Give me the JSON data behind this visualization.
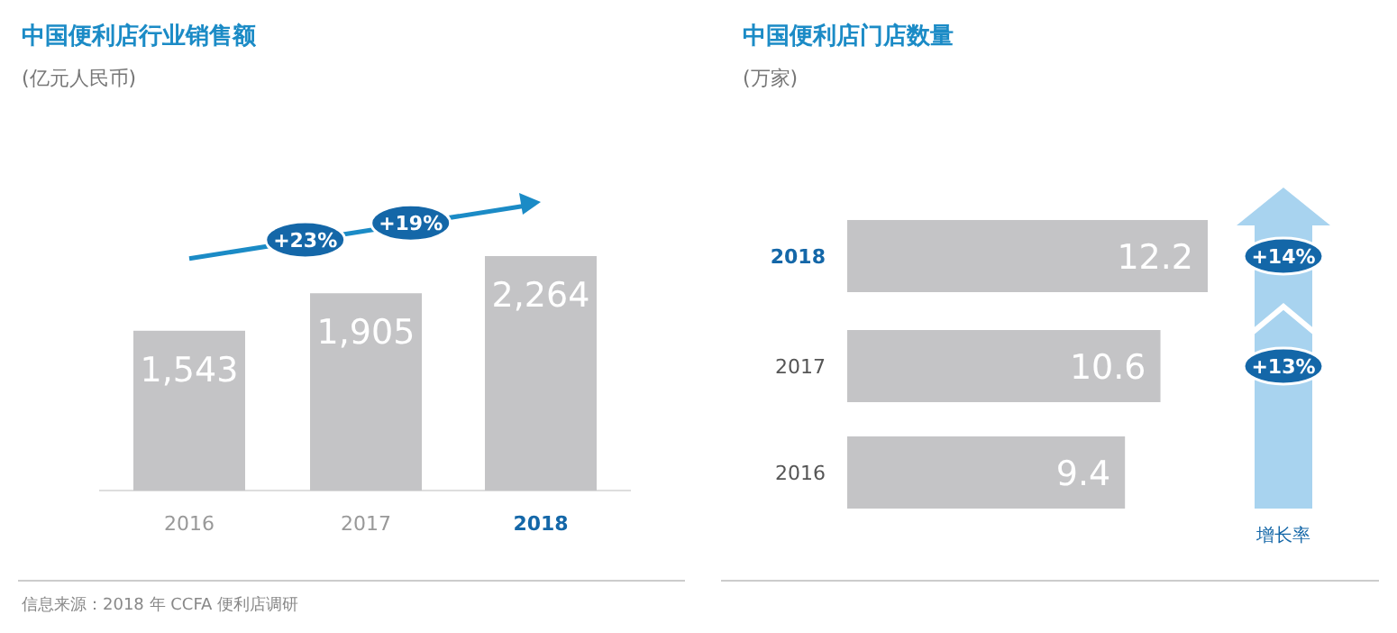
{
  "chart_data": [
    {
      "type": "bar",
      "title": "中国便利店行业销售额",
      "subtitle": "(亿元人民币)",
      "categories": [
        "2016",
        "2017",
        "2018"
      ],
      "values": [
        1543,
        1905,
        2264
      ],
      "value_labels": [
        "1,543",
        "1,905",
        "2,264"
      ],
      "color": "#c4c4c6",
      "annotations": [
        "+23%",
        "+19%",
        "信息来源：2018 年 CCFA 便利店调研"
      ]
    },
    {
      "type": "bar",
      "orientation": "horizontal",
      "title": "中国便利店门店数量",
      "subtitle": "(万家)",
      "categories": [
        "2018",
        "2017",
        "2016"
      ],
      "values": [
        12.2,
        10.6,
        9.4
      ],
      "color": "#c4c4c6",
      "data_labels": true,
      "annotations": [
        "+14%",
        "+13%",
        "增长率"
      ]
    }
  ]
}
